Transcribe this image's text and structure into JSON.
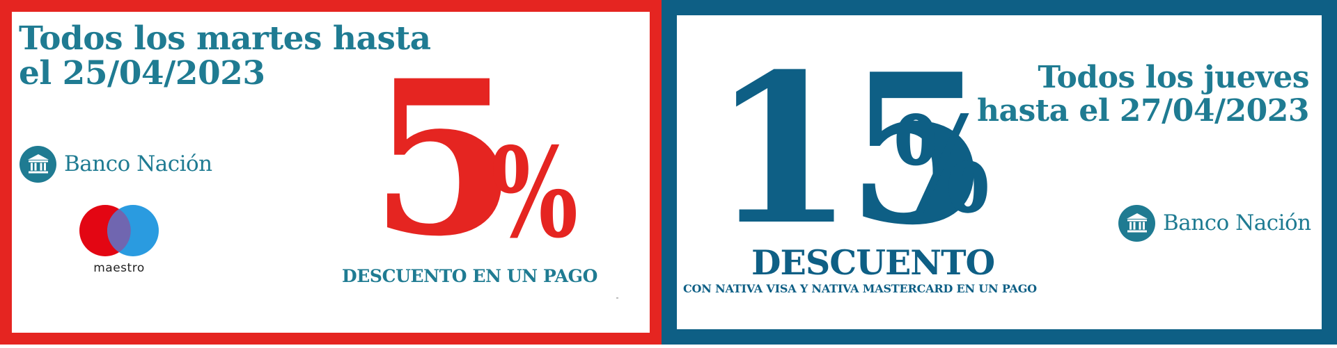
{
  "left_promo": {
    "headline_line1": "Todos los martes hasta",
    "headline_line2": "el 25/04/2023",
    "bank_name": "Banco Nación",
    "card_brand": "maestro",
    "discount_number": "5",
    "discount_symbol": "%",
    "caption": "DESCUENTO EN UN PAGO"
  },
  "right_promo": {
    "discount_number": "15",
    "discount_symbol": "%",
    "discount_word": "DESCUENTO",
    "subcaption": "CON NATIVA VISA Y NATIVA MASTERCARD EN UN PAGO",
    "headline_line1": "Todos los jueves",
    "headline_line2": "hasta el 27/04/2023",
    "bank_name": "Banco Nación"
  },
  "icons": {
    "bank": "bank-building-icon",
    "card": "maestro-logo-icon"
  },
  "colors": {
    "red": "#e52521",
    "teal": "#1f7b92",
    "navy": "#0e5f85",
    "maestro_red": "#e30613",
    "maestro_blue": "#2a9be0",
    "maestro_overlap": "#7066b0"
  }
}
